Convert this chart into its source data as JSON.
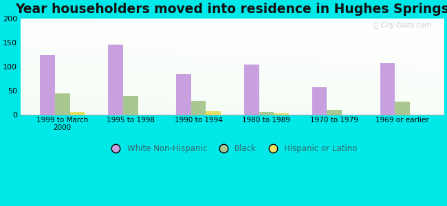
{
  "title": "Year householders moved into residence in Hughes Springs",
  "categories": [
    "1999 to March\n2000",
    "1995 to 1998",
    "1990 to 1994",
    "1980 to 1989",
    "1970 to 1979",
    "1969 or earlier"
  ],
  "white": [
    125,
    146,
    84,
    105,
    57,
    107
  ],
  "black": [
    44,
    38,
    29,
    6,
    10,
    27
  ],
  "hispanic": [
    6,
    0,
    7,
    3,
    0,
    0
  ],
  "white_color": "#c8a0e0",
  "black_color": "#a8c890",
  "hispanic_color": "#e8e060",
  "bg_outer": "#00e8e8",
  "plot_bg_top": "#f0faf8",
  "plot_bg_bottom": "#d8f0d8",
  "ylim": [
    0,
    200
  ],
  "yticks": [
    0,
    50,
    100,
    150,
    200
  ],
  "bar_width": 0.22,
  "title_fontsize": 13.5
}
